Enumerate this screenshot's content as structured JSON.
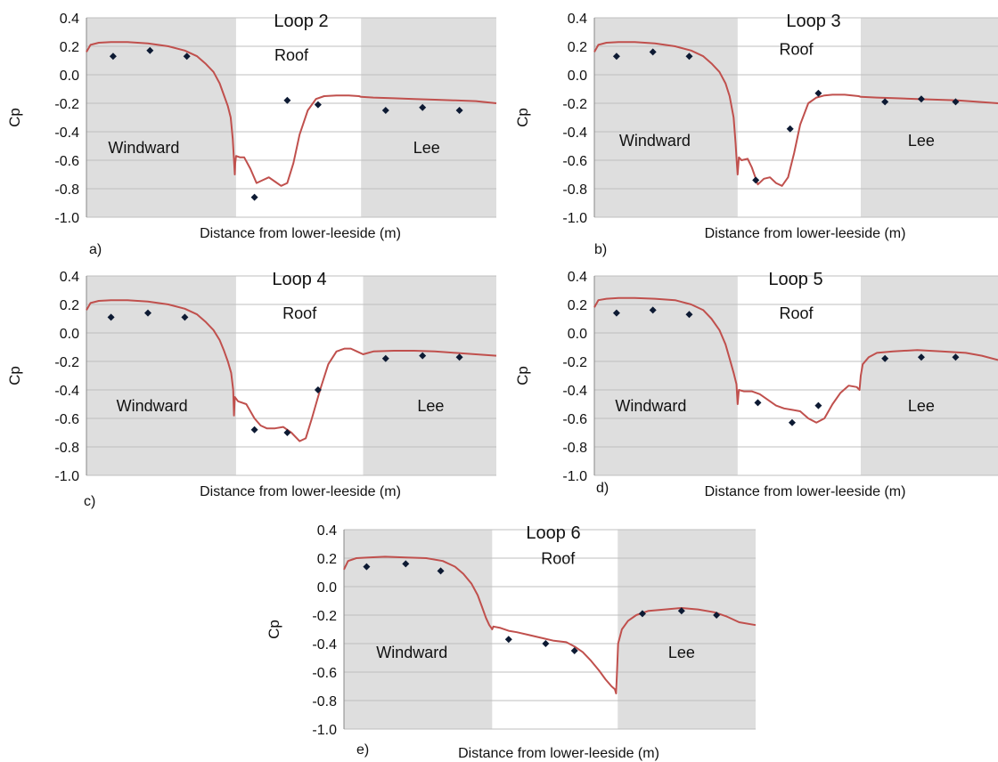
{
  "colors": {
    "curve": "#c0504d",
    "points": "#0d1a33",
    "shade": "#dedede",
    "grid": "#bfbfbf",
    "axis": "#888888"
  },
  "chart_data": [
    {
      "type": "line",
      "panel_label": "a)",
      "title": "Loop 2",
      "xlabel": "Distance from lower-leeside (m)",
      "ylabel": "Cp",
      "ylim": [
        -1.0,
        0.4
      ],
      "xlim": [
        0,
        100
      ],
      "grid": true,
      "y_ticks": [
        "0.4",
        "0.2",
        "0.0",
        "-0.2",
        "-0.4",
        "-0.6",
        "-0.8",
        "-1.0"
      ],
      "region_labels": [
        {
          "text": "Windward",
          "x": 14,
          "y": -0.55
        },
        {
          "text": "Roof",
          "x": 50,
          "y": 0.1
        },
        {
          "text": "Lee",
          "x": 83,
          "y": -0.55
        }
      ],
      "shaded_x": [
        [
          0,
          36.5
        ],
        [
          67,
          100
        ]
      ],
      "series": [
        {
          "kind": "line",
          "x": [
            0,
            1,
            3,
            6,
            10,
            15,
            20,
            24,
            27,
            29,
            31,
            32.5,
            33.5,
            34.5,
            35.2,
            35.7,
            36.0,
            36.2,
            36.3,
            36.5,
            37.5,
            38.5,
            40,
            41.5,
            43,
            44.5,
            46,
            47.5,
            49,
            50.5,
            52,
            54,
            56,
            58,
            61,
            64,
            66.5,
            67,
            70,
            75,
            80,
            85,
            90,
            95,
            100
          ],
          "y": [
            0.16,
            0.21,
            0.225,
            0.23,
            0.23,
            0.22,
            0.2,
            0.17,
            0.13,
            0.08,
            0.02,
            -0.06,
            -0.14,
            -0.22,
            -0.3,
            -0.45,
            -0.6,
            -0.7,
            -0.62,
            -0.57,
            -0.58,
            -0.58,
            -0.66,
            -0.76,
            -0.74,
            -0.72,
            -0.75,
            -0.78,
            -0.76,
            -0.62,
            -0.42,
            -0.25,
            -0.17,
            -0.15,
            -0.145,
            -0.145,
            -0.15,
            -0.155,
            -0.16,
            -0.165,
            -0.17,
            -0.175,
            -0.18,
            -0.185,
            -0.2
          ]
        },
        {
          "kind": "points",
          "x": [
            6.5,
            15.5,
            24.5,
            41,
            49,
            56.5,
            73,
            82,
            91
          ],
          "y": [
            0.13,
            0.17,
            0.13,
            -0.86,
            -0.18,
            -0.21,
            -0.25,
            -0.23,
            -0.25
          ]
        }
      ]
    },
    {
      "type": "line",
      "panel_label": "b)",
      "title": "Loop 3",
      "xlabel": "Distance from lower-leeside (m)",
      "ylabel": "Cp",
      "ylim": [
        -1.0,
        0.4
      ],
      "xlim": [
        0,
        100
      ],
      "grid": true,
      "y_ticks": [
        "0.4",
        "0.2",
        "0.0",
        "-0.2",
        "-0.4",
        "-0.6",
        "-0.8",
        "-1.0"
      ],
      "region_labels": [
        {
          "text": "Windward",
          "x": 15,
          "y": -0.5
        },
        {
          "text": "Roof",
          "x": 50,
          "y": 0.14
        },
        {
          "text": "Lee",
          "x": 81,
          "y": -0.5
        }
      ],
      "shaded_x": [
        [
          0,
          35.5
        ],
        [
          66,
          100
        ]
      ],
      "series": [
        {
          "kind": "line",
          "x": [
            0,
            1,
            3,
            6,
            10,
            15,
            20,
            24,
            27,
            29,
            31,
            32.5,
            33.5,
            34.5,
            35,
            35.3,
            35.5,
            35.8,
            36.5,
            38,
            39,
            40.5,
            42,
            43.5,
            45,
            46.5,
            48,
            49.5,
            51,
            53,
            55,
            57,
            59,
            62,
            65.5,
            66,
            70,
            75,
            80,
            85,
            90,
            95,
            100
          ],
          "y": [
            0.16,
            0.21,
            0.225,
            0.23,
            0.23,
            0.22,
            0.2,
            0.17,
            0.13,
            0.08,
            0.02,
            -0.06,
            -0.15,
            -0.3,
            -0.48,
            -0.62,
            -0.7,
            -0.58,
            -0.6,
            -0.59,
            -0.65,
            -0.77,
            -0.73,
            -0.72,
            -0.76,
            -0.78,
            -0.72,
            -0.55,
            -0.35,
            -0.2,
            -0.16,
            -0.145,
            -0.14,
            -0.14,
            -0.15,
            -0.155,
            -0.16,
            -0.165,
            -0.17,
            -0.175,
            -0.18,
            -0.19,
            -0.2
          ]
        },
        {
          "kind": "points",
          "x": [
            5.5,
            14.5,
            23.5,
            40,
            48.5,
            55.5,
            72,
            81,
            89.5
          ],
          "y": [
            0.13,
            0.16,
            0.13,
            -0.74,
            -0.38,
            -0.13,
            -0.19,
            -0.17,
            -0.19
          ]
        }
      ]
    },
    {
      "type": "line",
      "panel_label": "c)",
      "title": "Loop 4",
      "xlabel": "Distance from lower-leeside (m)",
      "ylabel": "Cp",
      "ylim": [
        -1.0,
        0.4
      ],
      "xlim": [
        0,
        100
      ],
      "grid": true,
      "y_ticks": [
        "0.4",
        "0.2",
        "0.0",
        "-0.2",
        "-0.4",
        "-0.6",
        "-0.8",
        "-1.0"
      ],
      "region_labels": [
        {
          "text": "Windward",
          "x": 16,
          "y": -0.55
        },
        {
          "text": "Roof",
          "x": 52,
          "y": 0.1
        },
        {
          "text": "Lee",
          "x": 84,
          "y": -0.55
        }
      ],
      "shaded_x": [
        [
          0,
          36.5
        ],
        [
          67.5,
          100
        ]
      ],
      "series": [
        {
          "kind": "line",
          "x": [
            0,
            1,
            3,
            6,
            10,
            15,
            20,
            24,
            27,
            29,
            31,
            32.5,
            33.5,
            34.5,
            35.3,
            35.8,
            36,
            36.2,
            37,
            39,
            41,
            42.5,
            44,
            46,
            48,
            50,
            52,
            53.5,
            55,
            57,
            59,
            61,
            63,
            64.5,
            66,
            67.5,
            70,
            75,
            80,
            85,
            90,
            95,
            100
          ],
          "y": [
            0.16,
            0.21,
            0.225,
            0.23,
            0.23,
            0.22,
            0.2,
            0.17,
            0.13,
            0.08,
            0.02,
            -0.05,
            -0.12,
            -0.2,
            -0.28,
            -0.4,
            -0.58,
            -0.45,
            -0.48,
            -0.5,
            -0.6,
            -0.65,
            -0.67,
            -0.67,
            -0.66,
            -0.7,
            -0.76,
            -0.74,
            -0.6,
            -0.4,
            -0.22,
            -0.13,
            -0.11,
            -0.11,
            -0.13,
            -0.15,
            -0.13,
            -0.125,
            -0.125,
            -0.13,
            -0.14,
            -0.15,
            -0.16
          ]
        },
        {
          "kind": "points",
          "x": [
            6,
            15,
            24,
            41,
            49,
            56.5,
            73,
            82,
            91
          ],
          "y": [
            0.11,
            0.14,
            0.11,
            -0.68,
            -0.7,
            -0.4,
            -0.18,
            -0.16,
            -0.17
          ]
        }
      ]
    },
    {
      "type": "line",
      "panel_label": "d)",
      "title": "Loop 5",
      "xlabel": "Distance from lower-leeside (m)",
      "ylabel": "Cp",
      "ylim": [
        -1.0,
        0.4
      ],
      "xlim": [
        0,
        100
      ],
      "grid": true,
      "y_ticks": [
        "0.4",
        "0.2",
        "0.0",
        "-0.2",
        "-0.4",
        "-0.6",
        "-0.8",
        "-1.0"
      ],
      "region_labels": [
        {
          "text": "Windward",
          "x": 14,
          "y": -0.55
        },
        {
          "text": "Roof",
          "x": 50,
          "y": 0.1
        },
        {
          "text": "Lee",
          "x": 81,
          "y": -0.55
        }
      ],
      "shaded_x": [
        [
          0,
          35.5
        ],
        [
          66,
          100
        ]
      ],
      "series": [
        {
          "kind": "line",
          "x": [
            0,
            1,
            3,
            6,
            10,
            15,
            20,
            24,
            27,
            29,
            31,
            32.5,
            33.5,
            34.5,
            35.2,
            35.5,
            35.8,
            37,
            39,
            41,
            43,
            45,
            47,
            49,
            51,
            53,
            55,
            57,
            59,
            61,
            63,
            65,
            65.7,
            66,
            66.5,
            68,
            70,
            74,
            80,
            86,
            92,
            96,
            100
          ],
          "y": [
            0.18,
            0.23,
            0.24,
            0.245,
            0.245,
            0.24,
            0.23,
            0.2,
            0.16,
            0.1,
            0.02,
            -0.08,
            -0.18,
            -0.28,
            -0.36,
            -0.5,
            -0.4,
            -0.41,
            -0.41,
            -0.43,
            -0.47,
            -0.51,
            -0.53,
            -0.54,
            -0.55,
            -0.6,
            -0.63,
            -0.6,
            -0.5,
            -0.42,
            -0.37,
            -0.38,
            -0.4,
            -0.3,
            -0.22,
            -0.17,
            -0.14,
            -0.13,
            -0.12,
            -0.13,
            -0.14,
            -0.16,
            -0.19
          ]
        },
        {
          "kind": "points",
          "x": [
            5.5,
            14.5,
            23.5,
            40.5,
            49,
            55.5,
            72,
            81,
            89.5
          ],
          "y": [
            0.14,
            0.16,
            0.13,
            -0.49,
            -0.63,
            -0.51,
            -0.18,
            -0.17,
            -0.17
          ]
        }
      ]
    },
    {
      "type": "line",
      "panel_label": "e)",
      "title": "Loop 6",
      "xlabel": "Distance from lower-leeside (m)",
      "ylabel": "Cp",
      "ylim": [
        -1.0,
        0.4
      ],
      "xlim": [
        0,
        100
      ],
      "grid": true,
      "y_ticks": [
        "0.4",
        "0.2",
        "0.0",
        "-0.2",
        "-0.4",
        "-0.6",
        "-0.8",
        "-1.0"
      ],
      "region_labels": [
        {
          "text": "Windward",
          "x": 16.5,
          "y": -0.5
        },
        {
          "text": "Roof",
          "x": 52,
          "y": 0.16
        },
        {
          "text": "Lee",
          "x": 82,
          "y": -0.5
        }
      ],
      "shaded_x": [
        [
          0,
          36
        ],
        [
          66.5,
          100
        ]
      ],
      "series": [
        {
          "kind": "line",
          "x": [
            0,
            1,
            3,
            6,
            10,
            15,
            20,
            24,
            27,
            29,
            31,
            32.5,
            33.5,
            34.5,
            35.3,
            35.8,
            36,
            36.3,
            38,
            40,
            42,
            45,
            48,
            51,
            54,
            56,
            58,
            60,
            62,
            63.5,
            65,
            65.8,
            66.1,
            66.3,
            66.6,
            67.5,
            69,
            71,
            74,
            78,
            82,
            86,
            90,
            93,
            96,
            100
          ],
          "y": [
            0.12,
            0.18,
            0.2,
            0.205,
            0.21,
            0.205,
            0.2,
            0.18,
            0.14,
            0.09,
            0.02,
            -0.06,
            -0.14,
            -0.22,
            -0.27,
            -0.29,
            -0.3,
            -0.28,
            -0.29,
            -0.31,
            -0.32,
            -0.34,
            -0.36,
            -0.38,
            -0.39,
            -0.42,
            -0.46,
            -0.52,
            -0.59,
            -0.65,
            -0.7,
            -0.72,
            -0.75,
            -0.62,
            -0.4,
            -0.3,
            -0.24,
            -0.2,
            -0.17,
            -0.16,
            -0.15,
            -0.16,
            -0.18,
            -0.21,
            -0.25,
            -0.27
          ]
        },
        {
          "kind": "points",
          "x": [
            5.5,
            15,
            23.5,
            40,
            49,
            56,
            72.5,
            82,
            90.5
          ],
          "y": [
            0.14,
            0.16,
            0.11,
            -0.37,
            -0.4,
            -0.45,
            -0.19,
            -0.17,
            -0.2
          ]
        }
      ]
    }
  ]
}
